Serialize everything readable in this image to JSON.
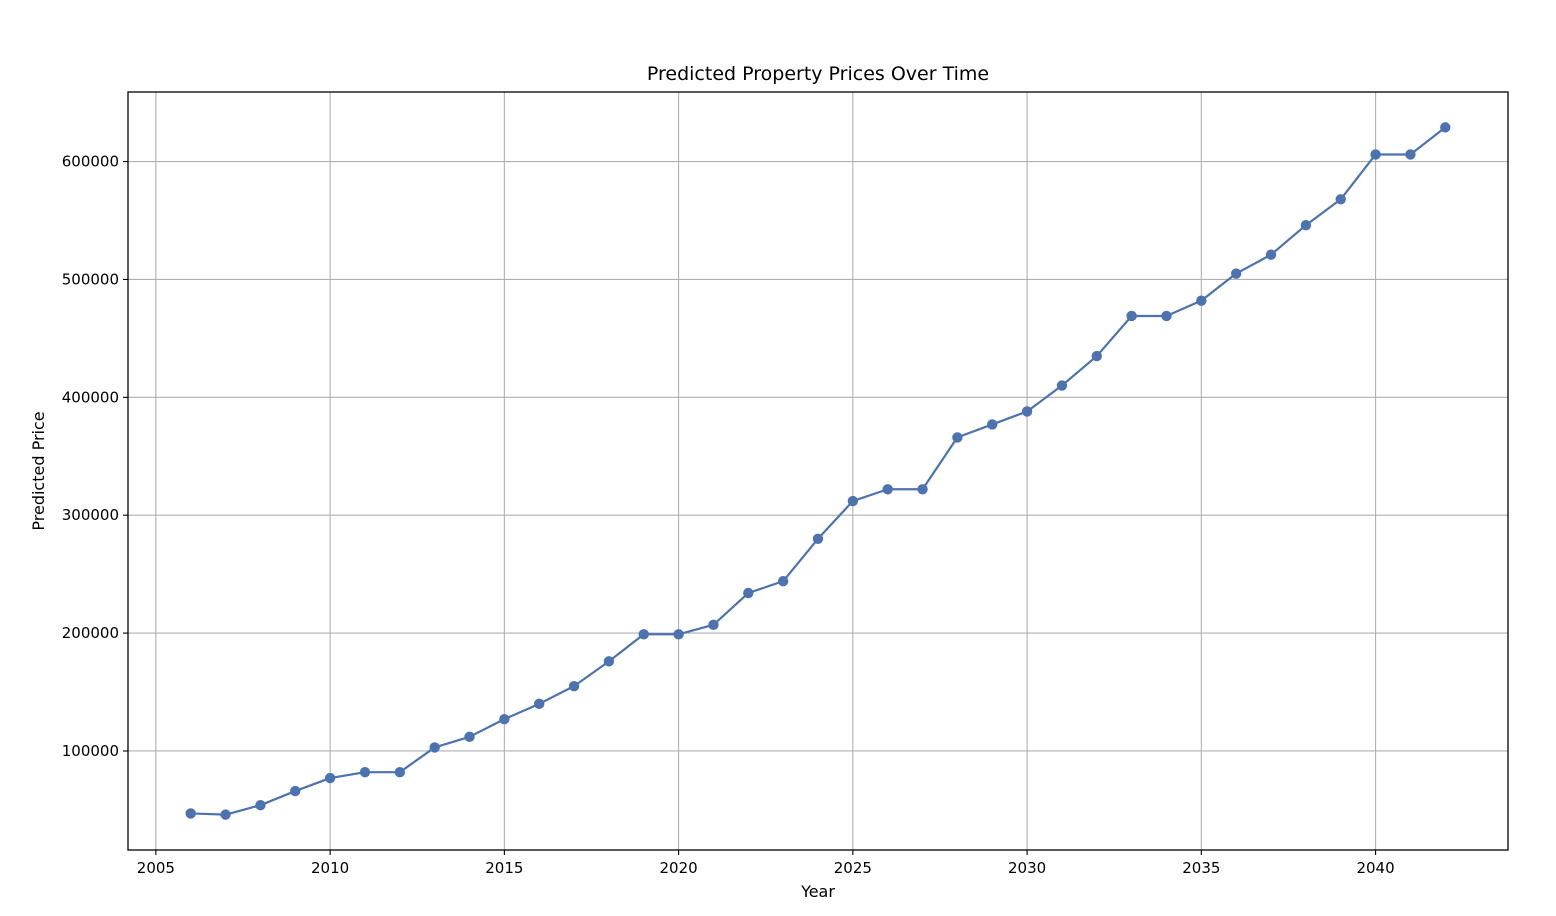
{
  "chart_data": {
    "type": "line",
    "title": "Predicted Property Prices Over Time",
    "xlabel": "Year",
    "ylabel": "Predicted Price",
    "xlim": [
      2004.2,
      2043.8
    ],
    "ylim": [
      16000,
      659000
    ],
    "xticks": [
      2005,
      2010,
      2015,
      2020,
      2025,
      2030,
      2035,
      2040
    ],
    "yticks": [
      100000,
      200000,
      300000,
      400000,
      500000,
      600000
    ],
    "grid": true,
    "legend": "none",
    "colors": {
      "line": "#4c72b0",
      "grid": "#b0b0b0"
    },
    "series": [
      {
        "x": [
          2006,
          2007,
          2008,
          2009,
          2010,
          2011,
          2012,
          2013,
          2014,
          2015,
          2016,
          2017,
          2018,
          2019,
          2020,
          2021,
          2022,
          2023,
          2024,
          2025,
          2026,
          2027,
          2028,
          2029,
          2030,
          2031,
          2032,
          2033,
          2034,
          2035,
          2036,
          2037,
          2038,
          2039,
          2040,
          2041,
          2042
        ],
        "values": [
          47000,
          46000,
          54000,
          66000,
          77000,
          82000,
          82000,
          103000,
          112000,
          127000,
          140000,
          155000,
          176000,
          199000,
          199000,
          207000,
          234000,
          244000,
          280000,
          312000,
          322000,
          322000,
          366000,
          377000,
          388000,
          410000,
          435000,
          469000,
          469000,
          482000,
          505000,
          521000,
          546000,
          568000,
          606000,
          606000,
          629000
        ]
      }
    ]
  }
}
